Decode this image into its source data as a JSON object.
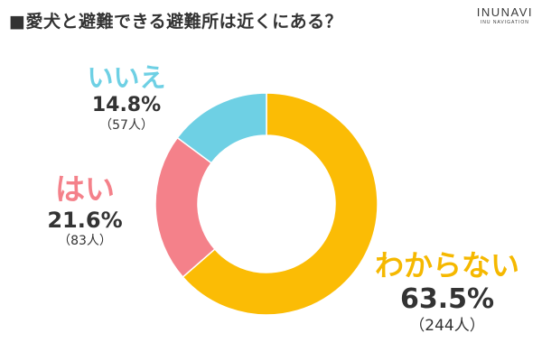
{
  "title": "■愛犬と避難できる避難所は近くにある？",
  "logo": {
    "main": "INUNAVI",
    "sub": "INU NAVIGATION"
  },
  "colors": {
    "wakaranai": "#fbbc05",
    "hai": "#f4818a",
    "iie": "#6ed0e4"
  },
  "chart_data": {
    "type": "pie",
    "donut": true,
    "title": "■愛犬と避難できる避難所は近くにある？",
    "categories": [
      "わからない",
      "はい",
      "いいえ"
    ],
    "values": [
      63.5,
      21.6,
      14.8
    ],
    "counts": [
      "（244人）",
      "（83人）",
      "（57人）"
    ],
    "percent_labels": [
      "63.5%",
      "21.6%",
      "14.8%"
    ],
    "colors": [
      "#fbbc05",
      "#f4818a",
      "#6ed0e4"
    ]
  }
}
